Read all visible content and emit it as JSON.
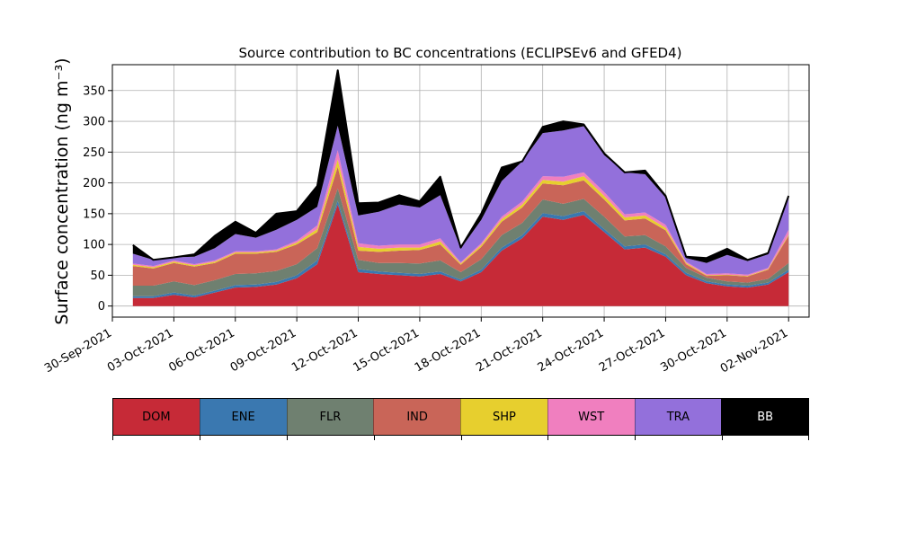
{
  "colors": {
    "DOM": "#c62a37",
    "ENE": "#3a78b0",
    "FLR": "#6f8070",
    "IND": "#c96558",
    "SHP": "#e7cf2e",
    "WST": "#f07fbf",
    "TRA": "#9370db",
    "BB": "#000000"
  },
  "chart_data": {
    "type": "area",
    "stacked": true,
    "title": "Source contribution to BC concentrations (ECLIPSEv6 and GFED4)",
    "ylabel": "Surface concentration (ng m⁻³)",
    "xlabel": "",
    "ylim": [
      -18,
      392
    ],
    "xlim": [
      "2021-09-30",
      "2021-11-03"
    ],
    "grid": true,
    "x_ticks": [
      "30-Sep-2021",
      "03-Oct-2021",
      "06-Oct-2021",
      "09-Oct-2021",
      "12-Oct-2021",
      "15-Oct-2021",
      "18-Oct-2021",
      "21-Oct-2021",
      "24-Oct-2021",
      "27-Oct-2021",
      "30-Oct-2021",
      "02-Nov-2021"
    ],
    "y_ticks": [
      "0",
      "50",
      "100",
      "150",
      "200",
      "250",
      "300",
      "350"
    ],
    "y_tick_values": [
      0,
      50,
      100,
      150,
      200,
      250,
      300,
      350
    ],
    "x": [
      "2021-10-01",
      "2021-10-02",
      "2021-10-03",
      "2021-10-04",
      "2021-10-05",
      "2021-10-06",
      "2021-10-07",
      "2021-10-08",
      "2021-10-09",
      "2021-10-10",
      "2021-10-11",
      "2021-10-12",
      "2021-10-13",
      "2021-10-14",
      "2021-10-15",
      "2021-10-16",
      "2021-10-17",
      "2021-10-18",
      "2021-10-19",
      "2021-10-20",
      "2021-10-21",
      "2021-10-22",
      "2021-10-23",
      "2021-10-24",
      "2021-10-25",
      "2021-10-26",
      "2021-10-27",
      "2021-10-28",
      "2021-10-29",
      "2021-10-30",
      "2021-10-31",
      "2021-11-01",
      "2021-11-02"
    ],
    "series": [
      {
        "name": "DOM",
        "values": [
          13,
          13,
          18,
          14,
          22,
          30,
          31,
          35,
          45,
          68,
          165,
          55,
          52,
          50,
          48,
          52,
          40,
          55,
          90,
          110,
          145,
          140,
          148,
          120,
          92,
          95,
          80,
          50,
          37,
          32,
          30,
          35,
          55
        ]
      },
      {
        "name": "ENE",
        "values": [
          3,
          3,
          4,
          3,
          3,
          4,
          4,
          4,
          5,
          6,
          6,
          5,
          4,
          4,
          4,
          4,
          3,
          4,
          5,
          5,
          6,
          6,
          6,
          5,
          5,
          5,
          4,
          4,
          3,
          3,
          3,
          3,
          4
        ]
      },
      {
        "name": "FLR",
        "values": [
          17,
          17,
          18,
          17,
          17,
          18,
          18,
          18,
          18,
          20,
          20,
          15,
          14,
          16,
          17,
          18,
          12,
          17,
          20,
          20,
          22,
          20,
          20,
          20,
          16,
          15,
          13,
          8,
          6,
          5,
          5,
          6,
          11
        ]
      },
      {
        "name": "IND",
        "values": [
          32,
          28,
          30,
          30,
          28,
          33,
          32,
          31,
          32,
          26,
          35,
          15,
          18,
          20,
          22,
          26,
          12,
          20,
          22,
          25,
          26,
          30,
          30,
          28,
          26,
          27,
          26,
          6,
          3,
          10,
          10,
          15,
          44
        ]
      },
      {
        "name": "SHP",
        "values": [
          2,
          2,
          2,
          2,
          2,
          2,
          2,
          2,
          3,
          5,
          12,
          6,
          5,
          5,
          4,
          5,
          2,
          3,
          4,
          5,
          6,
          6,
          7,
          6,
          5,
          5,
          4,
          2,
          1,
          1,
          1,
          1,
          2
        ]
      },
      {
        "name": "WST",
        "values": [
          2,
          2,
          2,
          2,
          2,
          2,
          2,
          2,
          3,
          6,
          15,
          6,
          5,
          5,
          5,
          5,
          2,
          3,
          4,
          5,
          6,
          8,
          6,
          6,
          5,
          5,
          5,
          2,
          2,
          2,
          2,
          2,
          8
        ]
      },
      {
        "name": "TRA",
        "values": [
          16,
          10,
          5,
          12,
          20,
          28,
          22,
          32,
          34,
          30,
          40,
          45,
          55,
          65,
          60,
          70,
          22,
          38,
          58,
          65,
          70,
          75,
          75,
          60,
          68,
          62,
          44,
          6,
          18,
          30,
          22,
          22,
          55
        ]
      },
      {
        "name": "BB",
        "values": [
          14,
          0,
          0,
          4,
          20,
          20,
          8,
          26,
          14,
          34,
          90,
          20,
          15,
          15,
          10,
          30,
          2,
          10,
          22,
          0,
          10,
          15,
          3,
          3,
          0,
          6,
          3,
          2,
          8,
          10,
          2,
          2,
          0
        ]
      }
    ]
  },
  "legend": [
    "DOM",
    "ENE",
    "FLR",
    "IND",
    "SHP",
    "WST",
    "TRA",
    "BB"
  ]
}
